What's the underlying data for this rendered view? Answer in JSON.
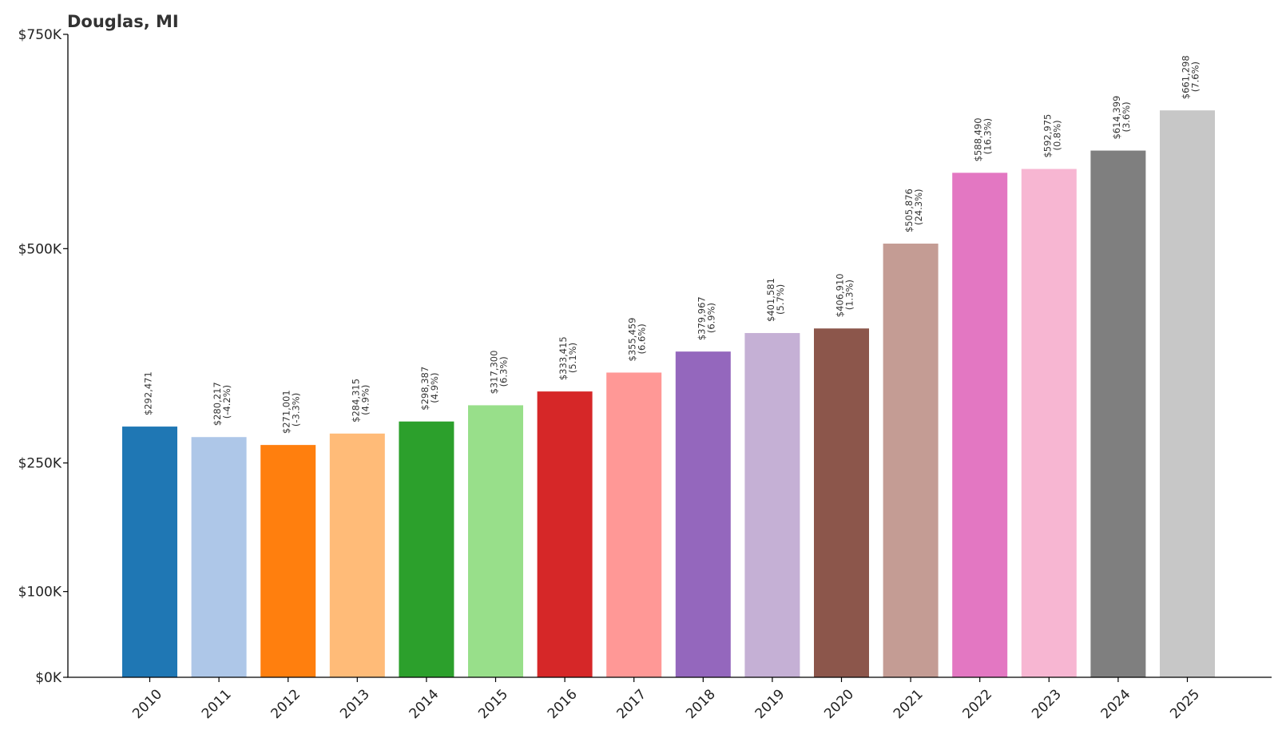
{
  "chart_data": {
    "type": "bar",
    "title": "Douglas, MI",
    "xlabel": "",
    "ylabel": "",
    "ylim": [
      0,
      750000
    ],
    "y_ticks": [
      {
        "value": 0,
        "label": "$0K"
      },
      {
        "value": 100000,
        "label": "$100K"
      },
      {
        "value": 250000,
        "label": "$250K"
      },
      {
        "value": 500000,
        "label": "$500K"
      },
      {
        "value": 750000,
        "label": "$750K"
      }
    ],
    "categories": [
      "2010",
      "2011",
      "2012",
      "2013",
      "2014",
      "2015",
      "2016",
      "2017",
      "2018",
      "2019",
      "2020",
      "2021",
      "2022",
      "2023",
      "2024",
      "2025"
    ],
    "values": [
      292471,
      280217,
      271001,
      284315,
      298387,
      317300,
      333415,
      355459,
      379967,
      401581,
      406910,
      505876,
      588490,
      592975,
      614399,
      661298
    ],
    "value_labels": [
      "$292,471",
      "$280,217",
      "$271,001",
      "$284,315",
      "$298,387",
      "$317,300",
      "$333,415",
      "$355,459",
      "$379,967",
      "$401,581",
      "$406,910",
      "$505,876",
      "$588,490",
      "$592,975",
      "$614,399",
      "$661,298"
    ],
    "change_labels": [
      "",
      "(-4.2%)",
      "(-3.3%)",
      "(4.9%)",
      "(4.9%)",
      "(6.3%)",
      "(5.1%)",
      "(6.6%)",
      "(6.9%)",
      "(5.7%)",
      "(1.3%)",
      "(24.3%)",
      "(16.3%)",
      "(0.8%)",
      "(3.6%)",
      "(7.6%)"
    ],
    "colors": [
      "#1f77b4",
      "#aec7e8",
      "#ff7f0e",
      "#ffbb78",
      "#2ca02c",
      "#98df8a",
      "#d62728",
      "#ff9896",
      "#9467bd",
      "#c5b0d5",
      "#8c564b",
      "#c49c94",
      "#e377c2",
      "#f7b6d2",
      "#7f7f7f",
      "#c7c7c7"
    ],
    "grid": false,
    "legend": "none"
  }
}
